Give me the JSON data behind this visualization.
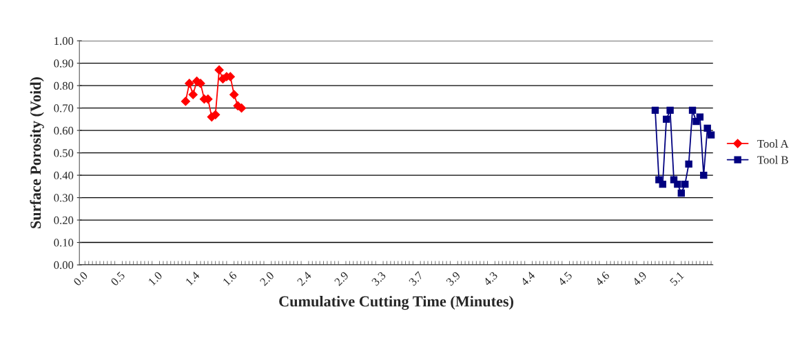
{
  "chart_data": {
    "type": "line",
    "xlabel": "Cumulative Cutting Time (Minutes)",
    "ylabel": "Surface Porosity (Void)",
    "categories": [
      "0.0",
      null,
      null,
      null,
      null,
      null,
      null,
      null,
      null,
      null,
      "0.5",
      null,
      null,
      null,
      null,
      null,
      null,
      null,
      null,
      null,
      "1.0",
      null,
      null,
      null,
      null,
      null,
      null,
      null,
      null,
      null,
      "1.4",
      null,
      null,
      null,
      null,
      null,
      null,
      null,
      null,
      null,
      "1.6",
      null,
      null,
      null,
      null,
      null,
      null,
      null,
      null,
      null,
      "2.0",
      null,
      null,
      null,
      null,
      null,
      null,
      null,
      null,
      null,
      "2.4",
      null,
      null,
      null,
      null,
      null,
      null,
      null,
      null,
      null,
      "2.9",
      null,
      null,
      null,
      null,
      null,
      null,
      null,
      null,
      null,
      "3.3",
      null,
      null,
      null,
      null,
      null,
      null,
      null,
      null,
      null,
      "3.7",
      null,
      null,
      null,
      null,
      null,
      null,
      null,
      null,
      null,
      "3.9",
      null,
      null,
      null,
      null,
      null,
      null,
      null,
      null,
      null,
      "4.3",
      null,
      null,
      null,
      null,
      null,
      null,
      null,
      null,
      null,
      "4.4",
      null,
      null,
      null,
      null,
      null,
      null,
      null,
      null,
      null,
      "4.5",
      null,
      null,
      null,
      null,
      null,
      null,
      null,
      null,
      null,
      "4.6",
      null,
      null,
      null,
      null,
      null,
      null,
      null,
      null,
      null,
      "4.9",
      null,
      null,
      null,
      null,
      null,
      null,
      null,
      null,
      null,
      "5.1",
      null,
      null,
      null,
      null,
      null,
      null,
      null,
      null,
      null
    ],
    "series": [
      {
        "name": "Tool A",
        "color": "#ff0000",
        "marker": "diamond",
        "values": [
          null,
          null,
          null,
          null,
          null,
          null,
          null,
          null,
          null,
          null,
          null,
          null,
          null,
          null,
          null,
          null,
          null,
          null,
          null,
          null,
          null,
          null,
          null,
          null,
          null,
          null,
          null,
          null,
          0.73,
          0.81,
          0.76,
          0.82,
          0.81,
          0.74,
          0.74,
          0.66,
          0.67,
          0.87,
          0.83,
          0.84,
          0.84,
          0.76,
          0.71,
          0.7,
          null,
          null,
          null,
          null,
          null,
          null,
          null,
          null,
          null,
          null,
          null,
          null,
          null,
          null,
          null,
          null,
          null,
          null,
          null,
          null,
          null,
          null,
          null,
          null,
          null,
          null,
          null,
          null,
          null,
          null,
          null,
          null,
          null,
          null,
          null,
          null,
          null,
          null,
          null,
          null,
          null,
          null,
          null,
          null,
          null,
          null,
          null,
          null,
          null,
          null,
          null,
          null,
          null,
          null,
          null,
          null,
          null,
          null,
          null,
          null,
          null,
          null,
          null,
          null,
          null,
          null,
          null,
          null,
          null,
          null,
          null,
          null,
          null,
          null,
          null,
          null,
          null,
          null,
          null,
          null,
          null,
          null,
          null,
          null,
          null,
          null,
          null,
          null,
          null,
          null,
          null,
          null,
          null,
          null,
          null,
          null,
          null,
          null,
          null,
          null,
          null,
          null,
          null,
          null,
          null,
          null,
          null,
          null,
          null,
          null,
          null,
          null,
          null,
          null,
          null,
          null,
          null,
          null,
          null,
          null,
          null,
          null,
          null,
          null,
          null,
          null
        ]
      },
      {
        "name": "Tool B",
        "color": "#000080",
        "marker": "square",
        "values": [
          null,
          null,
          null,
          null,
          null,
          null,
          null,
          null,
          null,
          null,
          null,
          null,
          null,
          null,
          null,
          null,
          null,
          null,
          null,
          null,
          null,
          null,
          null,
          null,
          null,
          null,
          null,
          null,
          null,
          null,
          null,
          null,
          null,
          null,
          null,
          null,
          null,
          null,
          null,
          null,
          null,
          null,
          null,
          null,
          null,
          null,
          null,
          null,
          null,
          null,
          null,
          null,
          null,
          null,
          null,
          null,
          null,
          null,
          null,
          null,
          null,
          null,
          null,
          null,
          null,
          null,
          null,
          null,
          null,
          null,
          null,
          null,
          null,
          null,
          null,
          null,
          null,
          null,
          null,
          null,
          null,
          null,
          null,
          null,
          null,
          null,
          null,
          null,
          null,
          null,
          null,
          null,
          null,
          null,
          null,
          null,
          null,
          null,
          null,
          null,
          null,
          null,
          null,
          null,
          null,
          null,
          null,
          null,
          null,
          null,
          null,
          null,
          null,
          null,
          null,
          null,
          null,
          null,
          null,
          null,
          null,
          null,
          null,
          null,
          null,
          null,
          null,
          null,
          null,
          null,
          null,
          null,
          null,
          null,
          null,
          null,
          null,
          null,
          null,
          null,
          null,
          null,
          null,
          null,
          null,
          null,
          null,
          null,
          null,
          null,
          null,
          null,
          null,
          null,
          0.69,
          0.38,
          0.36,
          0.65,
          0.69,
          0.38,
          0.36,
          0.32,
          0.36,
          0.45,
          0.69,
          0.64,
          0.66,
          0.4,
          0.61,
          0.58
        ]
      }
    ],
    "ylim": [
      0,
      1
    ],
    "yticks": [
      {
        "value": 0,
        "label": "0.00"
      },
      {
        "value": 0.1,
        "label": "0.10"
      },
      {
        "value": 0.2,
        "label": "0.20"
      },
      {
        "value": 0.3,
        "label": "0.30"
      },
      {
        "value": 0.4,
        "label": "0.40"
      },
      {
        "value": 0.5,
        "label": "0.50"
      },
      {
        "value": 0.6,
        "label": "0.60"
      },
      {
        "value": 0.7,
        "label": "0.70"
      },
      {
        "value": 0.8,
        "label": "0.80"
      },
      {
        "value": 0.9,
        "label": "0.90"
      },
      {
        "value": 1,
        "label": "1.00"
      }
    ],
    "grid": "y",
    "legend": "right",
    "line_style": "solid"
  }
}
